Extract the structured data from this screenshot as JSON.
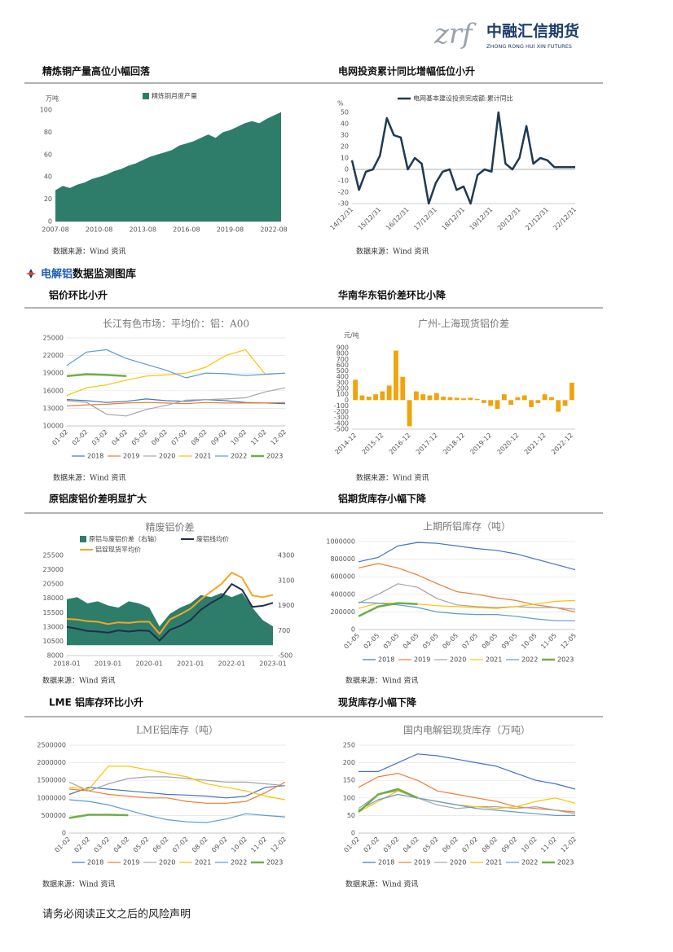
{
  "header": {
    "logo_mark": "zrf",
    "company": "中融汇信期货",
    "company_en": "ZHONG RONG HUI XIN FUTURES"
  },
  "section": {
    "highlight": "电解铝",
    "rest": "数据监测图库"
  },
  "panels": [
    {
      "heading": "精炼铜产量高位小幅回落",
      "source": "数据来源：Wind 资讯"
    },
    {
      "heading": "电网投资累计同比增幅低位小升",
      "source": "数据来源：Wind 资讯"
    },
    {
      "heading": "铝价环比小升",
      "source": "数据来源：Wind 资讯"
    },
    {
      "heading": "华南华东铝价差环比小降",
      "source": "数据来源：Wind 资讯"
    },
    {
      "heading": "原铝废铝价差明显扩大",
      "source": "数据来源：Wind 资讯"
    },
    {
      "heading": "铝期货库存小幅下降",
      "source": "数据来源：Wind 资讯"
    },
    {
      "heading": "LME 铝库存环比小升",
      "source": "数据来源：Wind 资讯"
    },
    {
      "heading": "现货库存小幅下降",
      "source": "数据来源：Wind 资讯"
    }
  ],
  "footer": "请务必阅读正文之后的风险声明",
  "chart_data": [
    {
      "type": "area",
      "y_label": "万吨",
      "ylim": [
        0,
        100
      ],
      "yticks": [
        0,
        20,
        40,
        60,
        80,
        100
      ],
      "grid": false,
      "categories": [
        "2007-08",
        null,
        null,
        null,
        null,
        null,
        "2010-08",
        null,
        null,
        null,
        null,
        null,
        "2013-08",
        null,
        null,
        null,
        null,
        null,
        "2016-08",
        null,
        null,
        null,
        null,
        null,
        "2019-08",
        null,
        null,
        null,
        null,
        null,
        "2022-08",
        null
      ],
      "series": [
        {
          "name": "精炼铜月度产量",
          "color": "#2e7d6b",
          "values": [
            28,
            32,
            30,
            33,
            35,
            38,
            40,
            42,
            45,
            47,
            50,
            52,
            55,
            58,
            60,
            62,
            64,
            68,
            70,
            72,
            75,
            78,
            75,
            80,
            82,
            85,
            88,
            90,
            88,
            92,
            95,
            98
          ]
        }
      ]
    },
    {
      "type": "line",
      "y_label": "%",
      "ylim": [
        -30,
        50
      ],
      "yticks": [
        -30,
        -20,
        -10,
        0,
        10,
        20,
        30,
        40,
        50
      ],
      "grid": false,
      "zero_line": true,
      "categories": [
        "14/12/31",
        null,
        null,
        null,
        "15/12/31",
        null,
        null,
        null,
        "16/12/31",
        null,
        null,
        null,
        "17/12/31",
        null,
        null,
        null,
        "18/12/31",
        null,
        null,
        null,
        "19/12/31",
        null,
        null,
        null,
        "20/12/31",
        null,
        null,
        null,
        "21/12/31",
        null,
        null,
        null,
        "22/12/31"
      ],
      "series": [
        {
          "name": "电网基本建设投资完成额:累计同比",
          "color": "#1f3a52",
          "width": 2.5,
          "values": [
            8,
            -18,
            -2,
            0,
            12,
            45,
            30,
            28,
            0,
            10,
            5,
            -30,
            -12,
            -2,
            0,
            -18,
            -15,
            -30,
            -5,
            0,
            -2,
            50,
            5,
            0,
            10,
            38,
            5,
            10,
            8,
            2,
            2,
            2,
            2
          ]
        }
      ]
    },
    {
      "type": "line",
      "title": "长江有色市场：平均价：铝：A00",
      "ylim": [
        10000,
        25000
      ],
      "yticks": [
        10000,
        13000,
        16000,
        19000,
        22000,
        25000
      ],
      "grid": true,
      "categories": [
        "01-02",
        "02-02",
        "03-02",
        "04-02",
        "05-02",
        "06-02",
        "07-02",
        "08-02",
        "09-02",
        "10-02",
        "11-02",
        "12-02"
      ],
      "series": [
        {
          "name": "2018",
          "color": "#4472c4",
          "width": 1.2,
          "values": [
            14500,
            14300,
            14000,
            14200,
            14600,
            14300,
            14200,
            14500,
            14300,
            14000,
            13900,
            13800
          ]
        },
        {
          "name": "2019",
          "color": "#ed7d31",
          "width": 1.2,
          "values": [
            13400,
            13600,
            13700,
            13900,
            14000,
            13900,
            13800,
            14000,
            13900,
            13900,
            13900,
            14000
          ]
        },
        {
          "name": "2020",
          "color": "#a5a5a5",
          "width": 1.2,
          "values": [
            14300,
            14000,
            12000,
            11700,
            12800,
            13500,
            14400,
            14500,
            14600,
            14800,
            15800,
            16500
          ]
        },
        {
          "name": "2021",
          "color": "#ffc000",
          "width": 1.2,
          "values": [
            15200,
            16500,
            17000,
            17800,
            18500,
            18700,
            19000,
            20000,
            22000,
            23000,
            18800,
            19000
          ]
        },
        {
          "name": "2022",
          "color": "#5b9bd5",
          "width": 1.2,
          "values": [
            20300,
            22600,
            23000,
            21500,
            20500,
            19500,
            18200,
            19000,
            18900,
            18600,
            18800,
            19000
          ]
        },
        {
          "name": "2023",
          "color": "#70ad47",
          "width": 2.5,
          "values": [
            18500,
            18800,
            18700,
            18500,
            null,
            null,
            null,
            null,
            null,
            null,
            null,
            null
          ]
        }
      ]
    },
    {
      "type": "bar",
      "title": "广州-上海现货铝价差",
      "y_label": "元/吨",
      "ylim": [
        -500,
        900
      ],
      "yticks": [
        -500,
        -400,
        -300,
        -200,
        -100,
        0,
        100,
        200,
        300,
        400,
        500,
        600,
        700,
        800,
        900
      ],
      "grid": false,
      "color": "#f0a30a",
      "categories": [
        "2014-12",
        null,
        null,
        null,
        "2015-12",
        null,
        null,
        null,
        "2016-12",
        null,
        null,
        null,
        "2017-12",
        null,
        null,
        null,
        "2018-12",
        null,
        null,
        null,
        "2019-12",
        null,
        null,
        null,
        "2020-12",
        null,
        null,
        null,
        "2021-12",
        null,
        null,
        null,
        "2022-12"
      ],
      "values": [
        350,
        80,
        60,
        100,
        150,
        250,
        850,
        400,
        -450,
        150,
        100,
        80,
        120,
        60,
        50,
        40,
        30,
        40,
        20,
        -50,
        -100,
        -150,
        100,
        -80,
        50,
        80,
        -120,
        -50,
        100,
        50,
        -200,
        -100,
        300
      ]
    },
    {
      "type": "combo",
      "title": "精废铝价差",
      "ylim": [
        8000,
        25500
      ],
      "yticks": [
        8000,
        10500,
        13000,
        15500,
        18000,
        20500,
        23000,
        25500
      ],
      "y2lim": [
        -500,
        4300
      ],
      "y2ticks": [
        -500,
        700,
        1900,
        3100,
        4300
      ],
      "grid": false,
      "categories": [
        "2018-01",
        null,
        null,
        null,
        "2019-01",
        null,
        null,
        null,
        "2020-01",
        null,
        null,
        null,
        "2021-01",
        null,
        null,
        null,
        "2022-01",
        null,
        null,
        null,
        "2023-01"
      ],
      "series": [
        {
          "name": "原铝与废铝价差（右轴）",
          "type": "area",
          "axis": "y2",
          "color": "#2e7d6b",
          "values": [
            2200,
            2300,
            2000,
            2100,
            1900,
            1800,
            2100,
            2000,
            1800,
            900,
            1500,
            1800,
            2000,
            2400,
            2300,
            2500,
            2300,
            2500,
            1800,
            1200,
            900
          ]
        },
        {
          "name": "废铝线均价",
          "type": "line",
          "color": "#1f2d4d",
          "width": 2,
          "values": [
            13000,
            12700,
            12300,
            12200,
            12000,
            12400,
            12200,
            12400,
            12300,
            10600,
            12500,
            13200,
            14200,
            16000,
            17200,
            18200,
            20500,
            19500,
            16500,
            16700,
            17200
          ]
        },
        {
          "name": "铝锭现货平均价",
          "type": "line",
          "color": "#f5a623",
          "width": 2,
          "values": [
            14400,
            14300,
            14000,
            13900,
            13500,
            13800,
            13700,
            13900,
            13900,
            11800,
            14300,
            15200,
            16200,
            17800,
            19200,
            20500,
            22500,
            21600,
            18500,
            18200,
            18600
          ]
        }
      ]
    },
    {
      "type": "line",
      "title": "上期所铝库存（吨）",
      "ylim": [
        0,
        1000000
      ],
      "yticks": [
        0,
        200000,
        400000,
        600000,
        800000,
        1000000
      ],
      "grid": true,
      "categories": [
        "01-05",
        "02-05",
        "03-05",
        "04-05",
        "05-05",
        "06-05",
        "07-05",
        "08-05",
        "09-05",
        "10-05",
        "11-05",
        "12-05"
      ],
      "series": [
        {
          "name": "2018",
          "color": "#4472c4",
          "width": 1.2,
          "values": [
            770000,
            820000,
            950000,
            990000,
            980000,
            950000,
            920000,
            900000,
            860000,
            800000,
            740000,
            680000
          ]
        },
        {
          "name": "2019",
          "color": "#ed7d31",
          "width": 1.2,
          "values": [
            700000,
            750000,
            700000,
            620000,
            520000,
            430000,
            400000,
            360000,
            330000,
            280000,
            250000,
            200000
          ]
        },
        {
          "name": "2020",
          "color": "#a5a5a5",
          "width": 1.2,
          "values": [
            300000,
            400000,
            520000,
            480000,
            350000,
            280000,
            260000,
            250000,
            260000,
            250000,
            250000,
            230000
          ]
        },
        {
          "name": "2021",
          "color": "#ffc000",
          "width": 1.2,
          "values": [
            240000,
            300000,
            300000,
            290000,
            270000,
            260000,
            250000,
            240000,
            260000,
            290000,
            320000,
            330000
          ]
        },
        {
          "name": "2022",
          "color": "#5b9bd5",
          "width": 1.2,
          "values": [
            310000,
            300000,
            280000,
            250000,
            200000,
            180000,
            170000,
            170000,
            150000,
            120000,
            100000,
            100000
          ]
        },
        {
          "name": "2023",
          "color": "#70ad47",
          "width": 2.5,
          "values": [
            150000,
            260000,
            300000,
            290000,
            null,
            null,
            null,
            null,
            null,
            null,
            null,
            null
          ]
        }
      ]
    },
    {
      "type": "line",
      "title": "LME铝库存（吨）",
      "ylim": [
        0,
        2500000
      ],
      "yticks": [
        0,
        500000,
        1000000,
        1500000,
        2000000,
        2500000
      ],
      "grid": true,
      "categories": [
        "01-02",
        "02-02",
        "03-02",
        "04-02",
        "05-02",
        "06-02",
        "07-02",
        "08-02",
        "09-02",
        "10-02",
        "11-02",
        "12-02"
      ],
      "series": [
        {
          "name": "2018",
          "color": "#4472c4",
          "width": 1.2,
          "values": [
            1100000,
            1300000,
            1250000,
            1200000,
            1150000,
            1100000,
            1080000,
            1050000,
            1000000,
            1050000,
            1300000,
            1350000
          ]
        },
        {
          "name": "2019",
          "color": "#ed7d31",
          "width": 1.2,
          "values": [
            1250000,
            1200000,
            1100000,
            1050000,
            1000000,
            1000000,
            900000,
            850000,
            850000,
            900000,
            1150000,
            1450000
          ]
        },
        {
          "name": "2020",
          "color": "#a5a5a5",
          "width": 1.2,
          "values": [
            1450000,
            1200000,
            1400000,
            1550000,
            1600000,
            1600000,
            1550000,
            1500000,
            1450000,
            1450000,
            1400000,
            1350000
          ]
        },
        {
          "name": "2021",
          "color": "#ffc000",
          "width": 1.2,
          "values": [
            1300000,
            1250000,
            1900000,
            1900000,
            1800000,
            1700000,
            1600000,
            1400000,
            1300000,
            1200000,
            1050000,
            950000
          ]
        },
        {
          "name": "2022",
          "color": "#5b9bd5",
          "width": 1.2,
          "values": [
            950000,
            900000,
            800000,
            650000,
            500000,
            380000,
            320000,
            300000,
            400000,
            550000,
            500000,
            460000
          ]
        },
        {
          "name": "2023",
          "color": "#70ad47",
          "width": 2.5,
          "values": [
            430000,
            520000,
            520000,
            510000,
            null,
            null,
            null,
            null,
            null,
            null,
            null,
            null
          ]
        }
      ]
    },
    {
      "type": "line",
      "title": "国内电解铝现货库存（万吨）",
      "ylim": [
        0,
        250
      ],
      "yticks": [
        0,
        50,
        100,
        150,
        200,
        250
      ],
      "grid": true,
      "categories": [
        "01-02",
        "02-02",
        "03-02",
        "04-02",
        "05-02",
        "06-02",
        "07-02",
        "08-02",
        "09-02",
        "10-02",
        "11-02",
        "12-02"
      ],
      "series": [
        {
          "name": "2018",
          "color": "#4472c4",
          "width": 1.2,
          "values": [
            175,
            175,
            200,
            225,
            220,
            210,
            200,
            190,
            170,
            150,
            140,
            125
          ]
        },
        {
          "name": "2019",
          "color": "#ed7d31",
          "width": 1.2,
          "values": [
            130,
            160,
            170,
            150,
            120,
            110,
            100,
            90,
            75,
            70,
            65,
            60
          ]
        },
        {
          "name": "2020",
          "color": "#a5a5a5",
          "width": 1.2,
          "values": [
            70,
            110,
            120,
            100,
            80,
            70,
            75,
            75,
            70,
            75,
            65,
            55
          ]
        },
        {
          "name": "2021",
          "color": "#ffc000",
          "width": 1.2,
          "values": [
            60,
            90,
            120,
            100,
            90,
            80,
            75,
            70,
            75,
            90,
            100,
            85
          ]
        },
        {
          "name": "2022",
          "color": "#5b9bd5",
          "width": 1.2,
          "values": [
            65,
            95,
            110,
            100,
            90,
            80,
            70,
            65,
            60,
            55,
            50,
            50
          ]
        },
        {
          "name": "2023",
          "color": "#70ad47",
          "width": 2.5,
          "values": [
            60,
            110,
            125,
            100,
            null,
            null,
            null,
            null,
            null,
            null,
            null,
            null
          ]
        }
      ]
    }
  ]
}
